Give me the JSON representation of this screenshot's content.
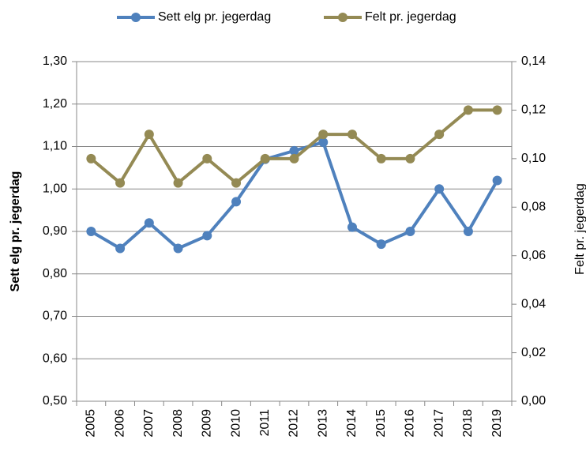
{
  "chart_data": {
    "type": "line",
    "categories": [
      "2005",
      "2006",
      "2007",
      "2008",
      "2009",
      "2010",
      "2011",
      "2012",
      "2013",
      "2014",
      "2015",
      "2016",
      "2017",
      "2018",
      "2019"
    ],
    "y_label": "Sett elg pr. jegerdag",
    "y2_label": "Felt pr. jegerdag",
    "ylim": [
      0.5,
      1.3
    ],
    "yticks": [
      {
        "value": 0.5,
        "label": "0,50"
      },
      {
        "value": 0.6,
        "label": "0,60"
      },
      {
        "value": 0.7,
        "label": "0,70"
      },
      {
        "value": 0.8,
        "label": "0,80"
      },
      {
        "value": 0.9,
        "label": "0,90"
      },
      {
        "value": 1.0,
        "label": "1,00"
      },
      {
        "value": 1.1,
        "label": "1,10"
      },
      {
        "value": 1.2,
        "label": "1,20"
      },
      {
        "value": 1.3,
        "label": "1,30"
      }
    ],
    "y2lim": [
      0,
      0.14
    ],
    "y2ticks": [
      {
        "value": 0,
        "label": "0,00"
      },
      {
        "value": 0.02,
        "label": "0,02"
      },
      {
        "value": 0.04,
        "label": "0,04"
      },
      {
        "value": 0.06,
        "label": "0,06"
      },
      {
        "value": 0.08,
        "label": "0,08"
      },
      {
        "value": 0.1,
        "label": "0,10"
      },
      {
        "value": 0.12,
        "label": "0,12"
      },
      {
        "value": 0.14,
        "label": "0,14"
      }
    ],
    "grid": true,
    "legend": "top",
    "series": [
      {
        "name": "Sett elg pr. jegerdag",
        "color": "#4f81bd",
        "values": [
          0.9,
          0.86,
          0.92,
          0.86,
          0.89,
          0.97,
          1.07,
          1.09,
          1.11,
          0.91,
          0.87,
          0.9,
          1.0,
          0.9,
          1.02
        ]
      },
      {
        "name": "Felt pr. jegerdag",
        "color": "#948a54",
        "axis": "y2",
        "values": [
          0.1,
          0.09,
          0.11,
          0.09,
          0.1,
          0.09,
          0.1,
          0.1,
          0.11,
          0.11,
          0.1,
          0.1,
          0.11,
          0.12,
          0.12
        ]
      }
    ]
  }
}
